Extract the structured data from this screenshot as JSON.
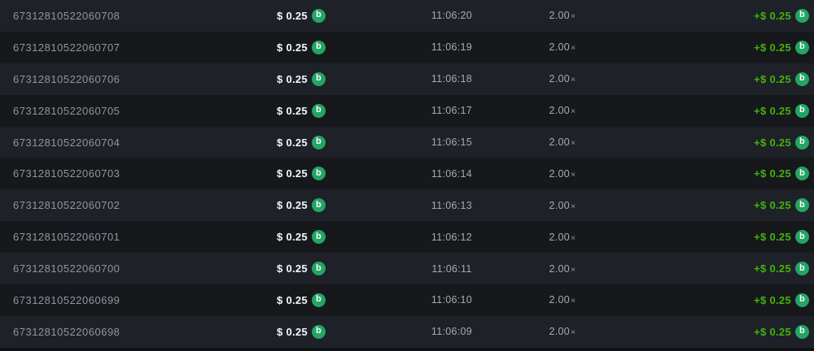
{
  "colors": {
    "row_light": "#1e2127",
    "row_dark": "#16181c",
    "id_text": "#8f96a3",
    "muted_text": "#a6abb4",
    "bet_text": "#f5f6f7",
    "payout_green": "#43b30b",
    "coin_green": "#23a563"
  },
  "coin": {
    "icon": "bcd-coin-icon",
    "glyph": "b"
  },
  "table": {
    "rows": [
      {
        "id": "67312810522060708",
        "bet": "$ 0.25",
        "time": "11:06:20",
        "multiplier": "2.00",
        "multiplier_symbol": "×",
        "payout": "+$ 0.25"
      },
      {
        "id": "67312810522060707",
        "bet": "$ 0.25",
        "time": "11:06:19",
        "multiplier": "2.00",
        "multiplier_symbol": "×",
        "payout": "+$ 0.25"
      },
      {
        "id": "67312810522060706",
        "bet": "$ 0.25",
        "time": "11:06:18",
        "multiplier": "2.00",
        "multiplier_symbol": "×",
        "payout": "+$ 0.25"
      },
      {
        "id": "67312810522060705",
        "bet": "$ 0.25",
        "time": "11:06:17",
        "multiplier": "2.00",
        "multiplier_symbol": "×",
        "payout": "+$ 0.25"
      },
      {
        "id": "67312810522060704",
        "bet": "$ 0.25",
        "time": "11:06:15",
        "multiplier": "2.00",
        "multiplier_symbol": "×",
        "payout": "+$ 0.25"
      },
      {
        "id": "67312810522060703",
        "bet": "$ 0.25",
        "time": "11:06:14",
        "multiplier": "2.00",
        "multiplier_symbol": "×",
        "payout": "+$ 0.25"
      },
      {
        "id": "67312810522060702",
        "bet": "$ 0.25",
        "time": "11:06:13",
        "multiplier": "2.00",
        "multiplier_symbol": "×",
        "payout": "+$ 0.25"
      },
      {
        "id": "67312810522060701",
        "bet": "$ 0.25",
        "time": "11:06:12",
        "multiplier": "2.00",
        "multiplier_symbol": "×",
        "payout": "+$ 0.25"
      },
      {
        "id": "67312810522060700",
        "bet": "$ 0.25",
        "time": "11:06:11",
        "multiplier": "2.00",
        "multiplier_symbol": "×",
        "payout": "+$ 0.25"
      },
      {
        "id": "67312810522060699",
        "bet": "$ 0.25",
        "time": "11:06:10",
        "multiplier": "2.00",
        "multiplier_symbol": "×",
        "payout": "+$ 0.25"
      },
      {
        "id": "67312810522060698",
        "bet": "$ 0.25",
        "time": "11:06:09",
        "multiplier": "2.00",
        "multiplier_symbol": "×",
        "payout": "+$ 0.25"
      }
    ]
  }
}
